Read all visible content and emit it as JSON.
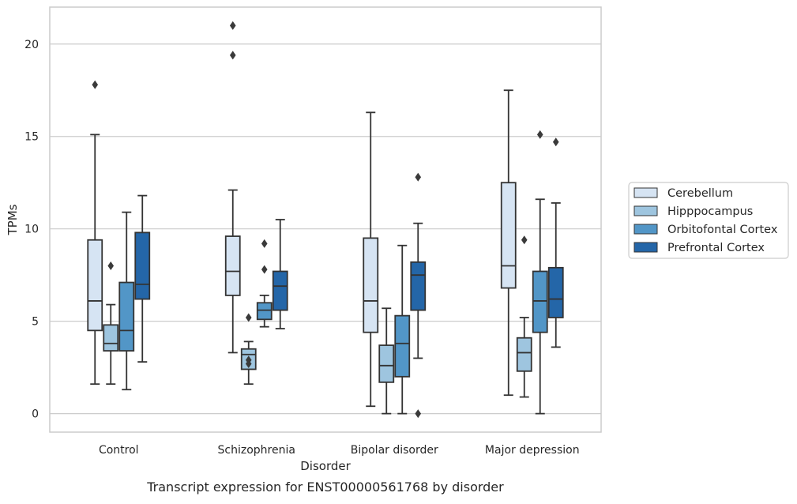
{
  "chart_data": {
    "type": "box",
    "title": "",
    "xlabel": "Disorder",
    "ylabel": "TPMs",
    "ylim": [
      -1,
      22
    ],
    "yticks": [
      0,
      5,
      10,
      15,
      20
    ],
    "grid": true,
    "legend_position": "right",
    "categories": [
      "Control",
      "Schizophrenia",
      "Bipolar disorder",
      "Major depression"
    ],
    "series": [
      {
        "name": "Cerebellum",
        "color": "#d6e4f3",
        "boxes": [
          {
            "whisker_low": 1.6,
            "q1": 4.5,
            "median": 6.1,
            "q3": 9.4,
            "whisker_high": 15.1,
            "outliers": [
              17.8
            ]
          },
          {
            "whisker_low": 3.3,
            "q1": 6.4,
            "median": 7.7,
            "q3": 9.6,
            "whisker_high": 12.1,
            "outliers": [
              19.4,
              21.0
            ]
          },
          {
            "whisker_low": 0.4,
            "q1": 4.4,
            "median": 6.1,
            "q3": 9.5,
            "whisker_high": 16.3,
            "outliers": []
          },
          {
            "whisker_low": 1.0,
            "q1": 6.8,
            "median": 8.0,
            "q3": 12.5,
            "whisker_high": 17.5,
            "outliers": []
          }
        ]
      },
      {
        "name": "Hipppocampus",
        "color": "#9ec5df",
        "boxes": [
          {
            "whisker_low": 1.6,
            "q1": 3.4,
            "median": 3.8,
            "q3": 4.8,
            "whisker_high": 5.9,
            "outliers": [
              8.0
            ]
          },
          {
            "whisker_low": 1.6,
            "q1": 2.4,
            "median": 3.2,
            "q3": 3.5,
            "whisker_high": 3.9,
            "outliers": [
              2.7,
              2.9,
              5.2
            ]
          },
          {
            "whisker_low": 0.0,
            "q1": 1.7,
            "median": 2.6,
            "q3": 3.7,
            "whisker_high": 5.7,
            "outliers": []
          },
          {
            "whisker_low": 0.9,
            "q1": 2.3,
            "median": 3.3,
            "q3": 4.1,
            "whisker_high": 5.2,
            "outliers": [
              9.4
            ]
          }
        ]
      },
      {
        "name": "Orbitofontal Cortex",
        "color": "#5296c7",
        "boxes": [
          {
            "whisker_low": 1.3,
            "q1": 3.4,
            "median": 4.5,
            "q3": 7.1,
            "whisker_high": 10.9,
            "outliers": []
          },
          {
            "whisker_low": 4.7,
            "q1": 5.1,
            "median": 5.6,
            "q3": 6.0,
            "whisker_high": 6.4,
            "outliers": [
              7.8,
              9.2
            ]
          },
          {
            "whisker_low": 0.0,
            "q1": 2.0,
            "median": 3.8,
            "q3": 5.3,
            "whisker_high": 9.1,
            "outliers": []
          },
          {
            "whisker_low": 0.0,
            "q1": 4.4,
            "median": 6.1,
            "q3": 7.7,
            "whisker_high": 11.6,
            "outliers": [
              15.1
            ]
          }
        ]
      },
      {
        "name": "Prefrontal Cortex",
        "color": "#2466a8",
        "boxes": [
          {
            "whisker_low": 2.8,
            "q1": 6.2,
            "median": 7.0,
            "q3": 9.8,
            "whisker_high": 11.8,
            "outliers": []
          },
          {
            "whisker_low": 4.6,
            "q1": 5.6,
            "median": 6.9,
            "q3": 7.7,
            "whisker_high": 10.5,
            "outliers": []
          },
          {
            "whisker_low": 3.0,
            "q1": 5.6,
            "median": 7.5,
            "q3": 8.2,
            "whisker_high": 10.3,
            "outliers": [
              0.0,
              12.8
            ]
          },
          {
            "whisker_low": 3.6,
            "q1": 5.2,
            "median": 6.2,
            "q3": 7.9,
            "whisker_high": 11.4,
            "outliers": [
              14.7
            ]
          }
        ]
      }
    ],
    "caption": "Transcript expression for ENST00000561768 by disorder"
  }
}
